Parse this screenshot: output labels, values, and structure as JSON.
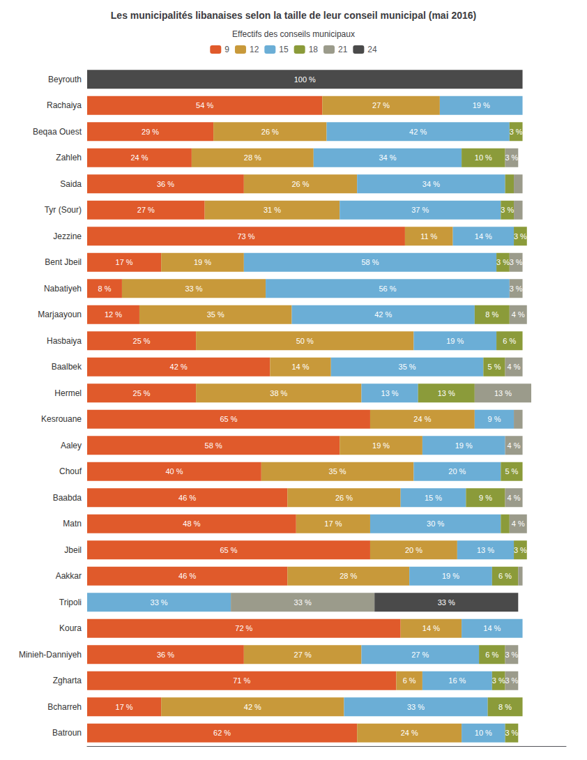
{
  "chart_data": {
    "type": "bar",
    "orientation": "horizontal",
    "stacked": true,
    "data_labels": true,
    "tick_labels": "y",
    "grid": false,
    "legend": "top",
    "title": "Les municipalités libanaises selon la taille de leur conseil municipal (mai 2016)",
    "legend_title": "Effectifs des conseils municipaux",
    "xlim": [
      0,
      110
    ],
    "categories": [
      "Beyrouth",
      "Rachaiya",
      "Beqaa Ouest",
      "Zahleh",
      "Saida",
      "Tyr (Sour)",
      "Jezzine",
      "Bent Jbeil",
      "Nabatiyeh",
      "Marjaayoun",
      "Hasbaiya",
      "Baalbek",
      "Hermel",
      "Kesrouane",
      "Aaley",
      "Chouf",
      "Baabda",
      "Matn",
      "Jbeil",
      "Aakkar",
      "Tripoli",
      "Koura",
      "Minieh-Danniyeh",
      "Zgharta",
      "Bcharreh",
      "Batroun"
    ],
    "series": [
      {
        "name": "9",
        "color": "#E05A2B",
        "values": [
          0,
          54,
          29,
          24,
          36,
          27,
          73,
          17,
          8,
          12,
          25,
          42,
          25,
          65,
          58,
          40,
          46,
          48,
          65,
          46,
          0,
          72,
          36,
          71,
          17,
          62
        ],
        "value_labels": [
          null,
          "54 %",
          "29 %",
          "24 %",
          "36 %",
          "27 %",
          "73 %",
          "17 %",
          "8 %",
          "12 %",
          "25 %",
          "42 %",
          "25 %",
          "65 %",
          "58 %",
          "40 %",
          "46 %",
          "48 %",
          "65 %",
          "46 %",
          null,
          "72 %",
          "36 %",
          "71 %",
          "17 %",
          "62 %"
        ]
      },
      {
        "name": "12",
        "color": "#C8993A",
        "values": [
          0,
          27,
          26,
          28,
          26,
          31,
          11,
          19,
          33,
          35,
          50,
          14,
          38,
          24,
          19,
          35,
          26,
          17,
          20,
          28,
          0,
          14,
          27,
          6,
          42,
          24
        ],
        "value_labels": [
          null,
          "27 %",
          "26 %",
          "28 %",
          "26 %",
          "31 %",
          "11 %",
          "19 %",
          "33 %",
          "35 %",
          "50 %",
          "14 %",
          "38 %",
          "24 %",
          "19 %",
          "35 %",
          "26 %",
          "17 %",
          "20 %",
          "28 %",
          null,
          "14 %",
          "27 %",
          "6 %",
          "42 %",
          "24 %"
        ]
      },
      {
        "name": "15",
        "color": "#6BAED6",
        "values": [
          0,
          19,
          42,
          34,
          34,
          37,
          14,
          58,
          56,
          42,
          19,
          35,
          13,
          9,
          19,
          20,
          15,
          30,
          13,
          19,
          33,
          14,
          27,
          16,
          33,
          10
        ],
        "value_labels": [
          null,
          "19 %",
          "42 %",
          "34 %",
          "34 %",
          "37 %",
          "14 %",
          "58 %",
          "56 %",
          "42 %",
          "19 %",
          "35 %",
          "13 %",
          "9 %",
          "19 %",
          "20 %",
          "15 %",
          "30 %",
          "13 %",
          "19 %",
          "33 %",
          "14 %",
          "27 %",
          "16 %",
          "33 %",
          "10 %"
        ]
      },
      {
        "name": "18",
        "color": "#8B9B3A",
        "values": [
          0,
          0,
          3,
          10,
          2,
          3,
          3,
          3,
          0,
          8,
          6,
          5,
          13,
          0,
          0,
          5,
          9,
          2,
          3,
          6,
          0,
          0,
          6,
          3,
          8,
          3
        ],
        "value_labels": [
          null,
          null,
          "3 %",
          "10 %",
          null,
          "3 %",
          "3 %",
          "3 %",
          null,
          "8 %",
          "6 %",
          "5 %",
          "13 %",
          null,
          null,
          "5 %",
          "9 %",
          null,
          "3 %",
          "6 %",
          null,
          null,
          "6 %",
          "3 %",
          "8 %",
          "3 %"
        ]
      },
      {
        "name": "21",
        "color": "#9B9B8B",
        "values": [
          0,
          0,
          0,
          3,
          2,
          2,
          0,
          3,
          3,
          4,
          0,
          4,
          13,
          2,
          4,
          0,
          4,
          4,
          0,
          1,
          33,
          0,
          3,
          3,
          0,
          0
        ],
        "value_labels": [
          null,
          null,
          null,
          "3 %",
          null,
          null,
          null,
          "3 %",
          "3 %",
          "4 %",
          null,
          "4 %",
          "13 %",
          null,
          "4 %",
          null,
          "4 %",
          "4 %",
          null,
          null,
          "33 %",
          null,
          "3 %",
          "3 %",
          null,
          null
        ]
      },
      {
        "name": "24",
        "color": "#4A4A4A",
        "values": [
          100,
          0,
          0,
          0,
          0,
          0,
          0,
          0,
          0,
          0,
          0,
          0,
          0,
          0,
          0,
          0,
          0,
          0,
          0,
          0,
          33,
          0,
          0,
          0,
          0,
          0
        ],
        "value_labels": [
          "100 %",
          null,
          null,
          null,
          null,
          null,
          null,
          null,
          null,
          null,
          null,
          null,
          null,
          null,
          null,
          null,
          null,
          null,
          null,
          null,
          "33 %",
          null,
          null,
          null,
          null,
          null
        ]
      }
    ]
  }
}
